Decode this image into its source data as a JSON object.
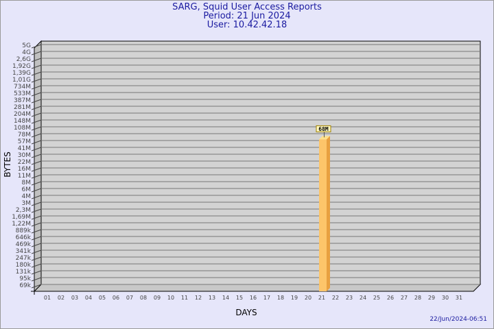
{
  "header": {
    "title": "SARG, Squid User Access Reports",
    "period": "Period: 21 Jun 2024",
    "user": "User: 10.42.42.18"
  },
  "timestamp": "22/Jun/2024-06:51",
  "chart_data": {
    "type": "bar",
    "title": "SARG, Squid User Access Reports",
    "xlabel": "DAYS",
    "ylabel": "BYTES",
    "y_scale": "log",
    "y_ticks": [
      "5G",
      "4G",
      "2,6G",
      "1,92G",
      "1,39G",
      "1,01G",
      "734M",
      "533M",
      "387M",
      "281M",
      "204M",
      "148M",
      "108M",
      "78M",
      "57M",
      "41M",
      "30M",
      "22M",
      "16M",
      "11M",
      "8M",
      "6M",
      "4M",
      "3M",
      "2,3M",
      "1,69M",
      "1,22M",
      "889k",
      "646k",
      "469k",
      "341k",
      "247k",
      "180k",
      "131k",
      "95k",
      "69k"
    ],
    "categories": [
      "01",
      "02",
      "03",
      "04",
      "05",
      "06",
      "07",
      "08",
      "09",
      "10",
      "11",
      "12",
      "13",
      "14",
      "15",
      "16",
      "17",
      "18",
      "19",
      "20",
      "21",
      "22",
      "23",
      "24",
      "25",
      "26",
      "27",
      "28",
      "29",
      "30",
      "31"
    ],
    "values": [
      null,
      null,
      null,
      null,
      null,
      null,
      null,
      null,
      null,
      null,
      null,
      null,
      null,
      null,
      null,
      null,
      null,
      null,
      null,
      null,
      68000000,
      null,
      null,
      null,
      null,
      null,
      null,
      null,
      null,
      null,
      null
    ],
    "data_labels": {
      "21": "68M"
    },
    "grid": true,
    "colors": {
      "bar": "#fdc56a",
      "bar_side": "#e8a040",
      "plot": "#d3d3d3",
      "background": "#e6e6fa",
      "title": "#1a1aa0"
    }
  }
}
